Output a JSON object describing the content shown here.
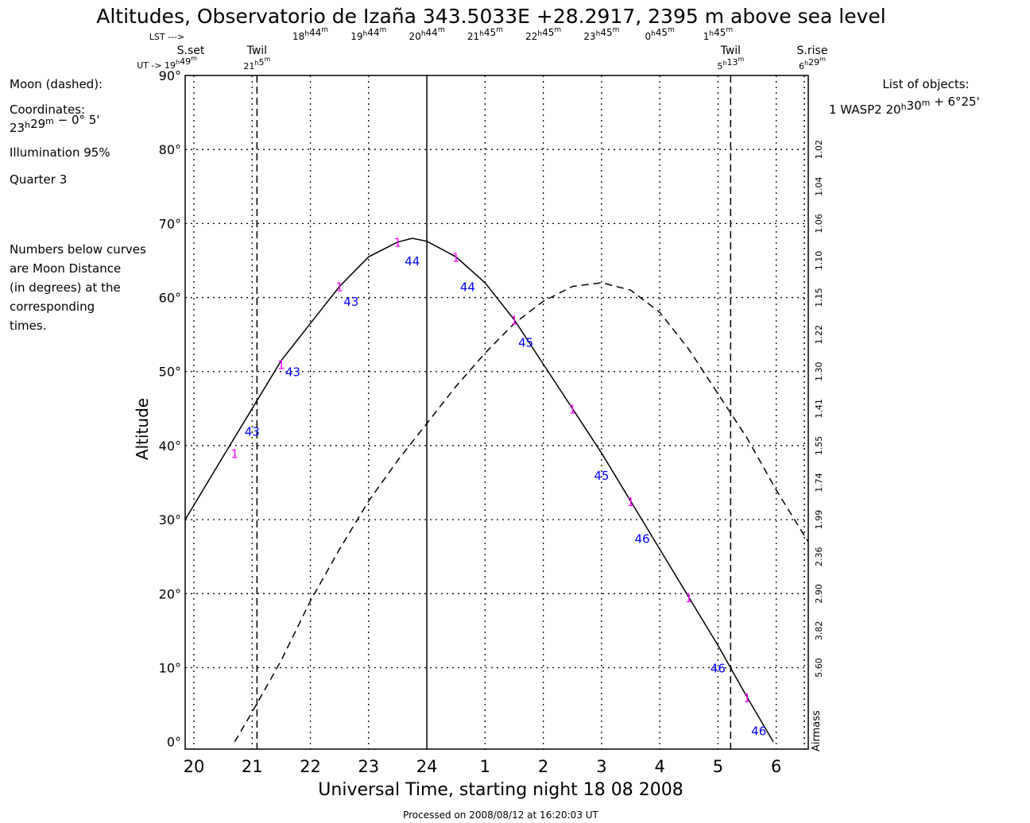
{
  "chart_data": {
    "type": "line",
    "title": "Altitudes, Observatorio de Izaña 343.5033E +28.2917, 2395 m above sea level",
    "xlabel": "Universal Time, starting night 18 08 2008",
    "ylabel": "Altitude",
    "right_axis_label": "Airmass",
    "footer": "Processed on 2008/08/12 at 16:20:03 UT",
    "xlim": [
      19.85,
      30.55
    ],
    "ylim": [
      -1,
      90
    ],
    "x_ticks": [
      {
        "x": 20,
        "label": "20"
      },
      {
        "x": 21,
        "label": "21"
      },
      {
        "x": 22,
        "label": "22"
      },
      {
        "x": 23,
        "label": "23"
      },
      {
        "x": 24,
        "label": "24"
      },
      {
        "x": 25,
        "label": "1"
      },
      {
        "x": 26,
        "label": "2"
      },
      {
        "x": 27,
        "label": "3"
      },
      {
        "x": 28,
        "label": "4"
      },
      {
        "x": 29,
        "label": "5"
      },
      {
        "x": 30,
        "label": "6"
      }
    ],
    "y_ticks": [
      {
        "y": 0,
        "label": "0°"
      },
      {
        "y": 10,
        "label": "10°"
      },
      {
        "y": 20,
        "label": "20°"
      },
      {
        "y": 30,
        "label": "30°"
      },
      {
        "y": 40,
        "label": "40°"
      },
      {
        "y": 50,
        "label": "50°"
      },
      {
        "y": 60,
        "label": "60°"
      },
      {
        "y": 70,
        "label": "70°"
      },
      {
        "y": 80,
        "label": "80°"
      },
      {
        "y": 90,
        "label": "90°"
      }
    ],
    "airmass_ticks": [
      {
        "alt": 80,
        "label": "1.02"
      },
      {
        "alt": 75,
        "label": "1.04"
      },
      {
        "alt": 70,
        "label": "1.06"
      },
      {
        "alt": 65,
        "label": "1.10"
      },
      {
        "alt": 60,
        "label": "1.15"
      },
      {
        "alt": 55,
        "label": "1.22"
      },
      {
        "alt": 50,
        "label": "1.30"
      },
      {
        "alt": 45,
        "label": "1.41"
      },
      {
        "alt": 40,
        "label": "1.55"
      },
      {
        "alt": 35,
        "label": "1.74"
      },
      {
        "alt": 30,
        "label": "1.99"
      },
      {
        "alt": 25,
        "label": "2.36"
      },
      {
        "alt": 20,
        "label": "2.90"
      },
      {
        "alt": 15,
        "label": "3.82"
      },
      {
        "alt": 10,
        "label": "5.60"
      }
    ],
    "lst_labels": [
      {
        "ut": 22.0,
        "label": "18h44m"
      },
      {
        "ut": 23.0,
        "label": "19h44m"
      },
      {
        "ut": 24.0,
        "label": "20h44m"
      },
      {
        "ut": 25.0,
        "label": "21h45m"
      },
      {
        "ut": 26.0,
        "label": "22h45m"
      },
      {
        "ut": 27.0,
        "label": "23h45m"
      },
      {
        "ut": 28.0,
        "label": "0h45m"
      },
      {
        "ut": 29.0,
        "label": "1h45m"
      }
    ],
    "lst_header": "LST --->",
    "ut_header": "UT -> 19h49m",
    "events": [
      {
        "name": "S.set",
        "ut": 19.817,
        "time": "",
        "line": "dotted"
      },
      {
        "name": "Twil",
        "ut": 21.083,
        "time": "21h 5m",
        "line": "dashed"
      },
      {
        "name": "Twil",
        "ut": 29.217,
        "time": "5h13m",
        "line": "dashed"
      },
      {
        "name": "S.rise",
        "ut": 30.483,
        "time": "6h29m",
        "line": "dotted"
      }
    ],
    "transit_ut": 24.0,
    "series": [
      {
        "name": "WASP2",
        "style": "solid",
        "color": "#000000",
        "x": [
          19.85,
          20.5,
          21.0,
          21.5,
          22.0,
          22.5,
          23.0,
          23.5,
          23.75,
          24.0,
          24.5,
          25.0,
          25.5,
          26.0,
          26.5,
          27.0,
          27.5,
          28.0,
          28.5,
          29.0,
          29.5,
          29.95
        ],
        "y": [
          30,
          38.5,
          45,
          51.5,
          56.5,
          61.5,
          65.5,
          67.5,
          68,
          67.6,
          65.5,
          62,
          57,
          51,
          45,
          39,
          32.5,
          26,
          19.5,
          13,
          6,
          0
        ]
      },
      {
        "name": "Moon",
        "style": "dashed",
        "color": "#000000",
        "x": [
          20.7,
          21.0,
          21.5,
          22.0,
          22.5,
          23.0,
          23.5,
          24.0,
          24.5,
          25.0,
          25.5,
          26.0,
          26.5,
          27.0,
          27.5,
          28.0,
          28.5,
          29.0,
          29.5,
          30.0,
          30.55
        ],
        "y": [
          0,
          4,
          11,
          19,
          26,
          32.5,
          38,
          43,
          48,
          52.5,
          56.5,
          59.5,
          61.5,
          62,
          61,
          58,
          53,
          47,
          41,
          34,
          27
        ]
      }
    ],
    "object_markers": [
      {
        "ut": 20.7,
        "alt": 39,
        "label": "1"
      },
      {
        "ut": 21.5,
        "alt": 51,
        "label": "1"
      },
      {
        "ut": 22.5,
        "alt": 61.5,
        "label": "1"
      },
      {
        "ut": 23.5,
        "alt": 67.5,
        "label": "1"
      },
      {
        "ut": 24.5,
        "alt": 65.5,
        "label": "1"
      },
      {
        "ut": 25.5,
        "alt": 57,
        "label": "1"
      },
      {
        "ut": 26.5,
        "alt": 45,
        "label": "1"
      },
      {
        "ut": 27.5,
        "alt": 32.5,
        "label": "1"
      },
      {
        "ut": 28.5,
        "alt": 19.5,
        "label": "1"
      },
      {
        "ut": 29.5,
        "alt": 6,
        "label": "1"
      }
    ],
    "moon_distances": [
      {
        "ut": 21.0,
        "alt": 42,
        "label": "43"
      },
      {
        "ut": 21.7,
        "alt": 50,
        "label": "43"
      },
      {
        "ut": 22.7,
        "alt": 59.5,
        "label": "43"
      },
      {
        "ut": 23.75,
        "alt": 65,
        "label": "44"
      },
      {
        "ut": 24.7,
        "alt": 61.5,
        "label": "44"
      },
      {
        "ut": 25.7,
        "alt": 54,
        "label": "45"
      },
      {
        "ut": 27.0,
        "alt": 36,
        "label": "45"
      },
      {
        "ut": 27.7,
        "alt": 27.5,
        "label": "46"
      },
      {
        "ut": 29.0,
        "alt": 10,
        "label": "46"
      },
      {
        "ut": 29.7,
        "alt": 1.5,
        "label": "46"
      }
    ],
    "annotation_colors": {
      "object": "#ff00ff",
      "moon_distance": "#0000ff"
    }
  },
  "moon_panel": {
    "heading": "Moon (dashed):",
    "coords_label": "Coordinates:",
    "coords_value": "23h29m  − 0° 5'",
    "illumination": "Illumination  95%",
    "quarter": "Quarter      3"
  },
  "note_lines": [
    "Numbers below curves",
    "are Moon Distance",
    "(in degrees) at the",
    "corresponding",
    "times."
  ],
  "objects_list": {
    "heading": "List of objects:",
    "entries": [
      "1 WASP2  20h30m + 6°25'"
    ]
  }
}
